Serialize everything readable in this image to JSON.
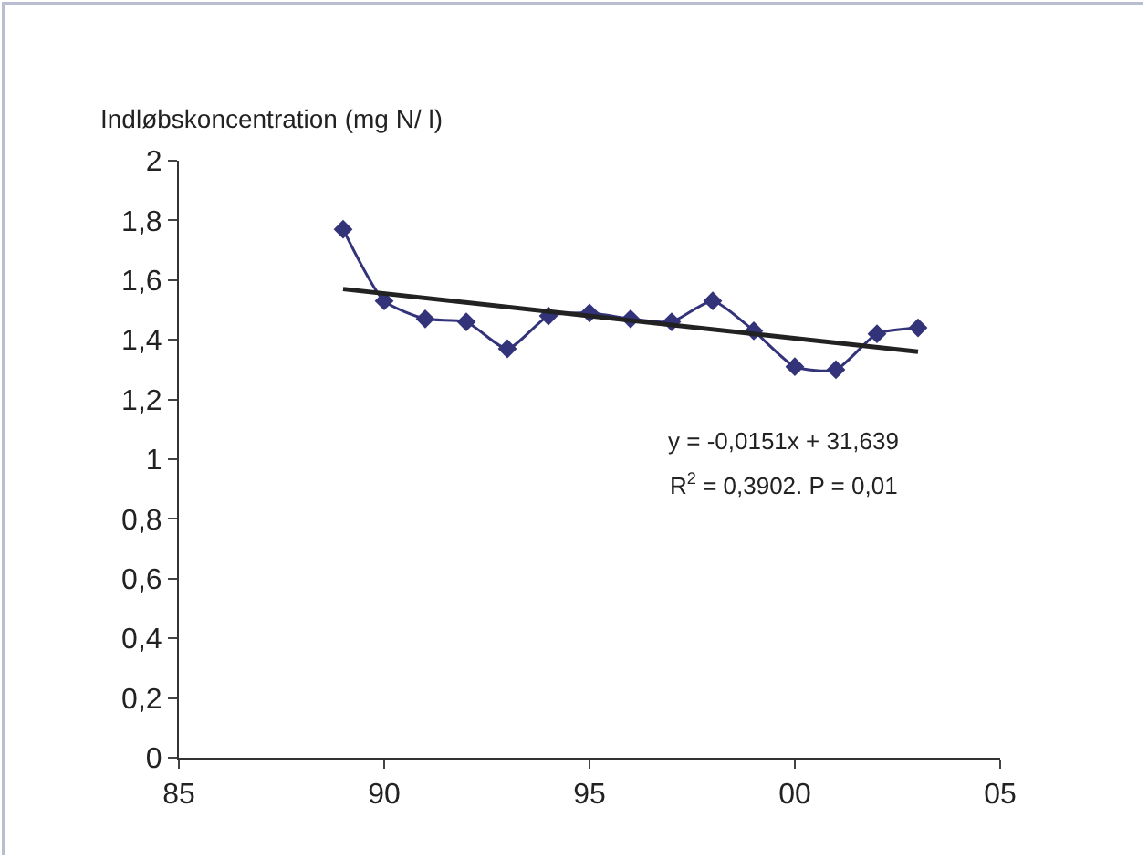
{
  "chart_data": {
    "type": "line",
    "ylabel": "Indløbskoncentration (mg N/ l)",
    "x": [
      1989,
      1990,
      1991,
      1992,
      1993,
      1994,
      1995,
      1996,
      1997,
      1998,
      1999,
      2000,
      2001,
      2002,
      2003
    ],
    "series": [
      {
        "color": "#33337a",
        "marker": "diamond",
        "values": [
          1.77,
          1.53,
          1.47,
          1.46,
          1.37,
          1.48,
          1.49,
          1.47,
          1.46,
          1.53,
          1.43,
          1.31,
          1.3,
          1.42,
          1.44
        ]
      },
      {
        "type": "line",
        "color": "#222222",
        "marker": "none",
        "x": [
          1989,
          2003
        ],
        "values": [
          1.57,
          1.36
        ]
      }
    ],
    "xlim": [
      1985,
      2005
    ],
    "xticks": [
      {
        "value": 1985,
        "label": "85"
      },
      {
        "value": 1990,
        "label": "90"
      },
      {
        "value": 1995,
        "label": "95"
      },
      {
        "value": 2000,
        "label": "00"
      },
      {
        "value": 2005,
        "label": "05"
      }
    ],
    "ylim": [
      0,
      2
    ],
    "yticks": [
      0,
      {
        "value": 0.2,
        "label": "0,2"
      },
      {
        "value": 0.4,
        "label": "0,4"
      },
      {
        "value": 0.6,
        "label": "0,6"
      },
      {
        "value": 0.8,
        "label": "0,8"
      },
      1,
      {
        "value": 1.2,
        "label": "1,2"
      },
      {
        "value": 1.4,
        "label": "1,4"
      },
      {
        "value": 1.6,
        "label": "1,6"
      },
      {
        "value": 1.8,
        "label": "1,8"
      },
      2
    ],
    "annotations": [
      "y = -0,0151x + 31,639",
      "R$^{2}$ = 0,3902. P = 0,01"
    ],
    "grid": false
  }
}
